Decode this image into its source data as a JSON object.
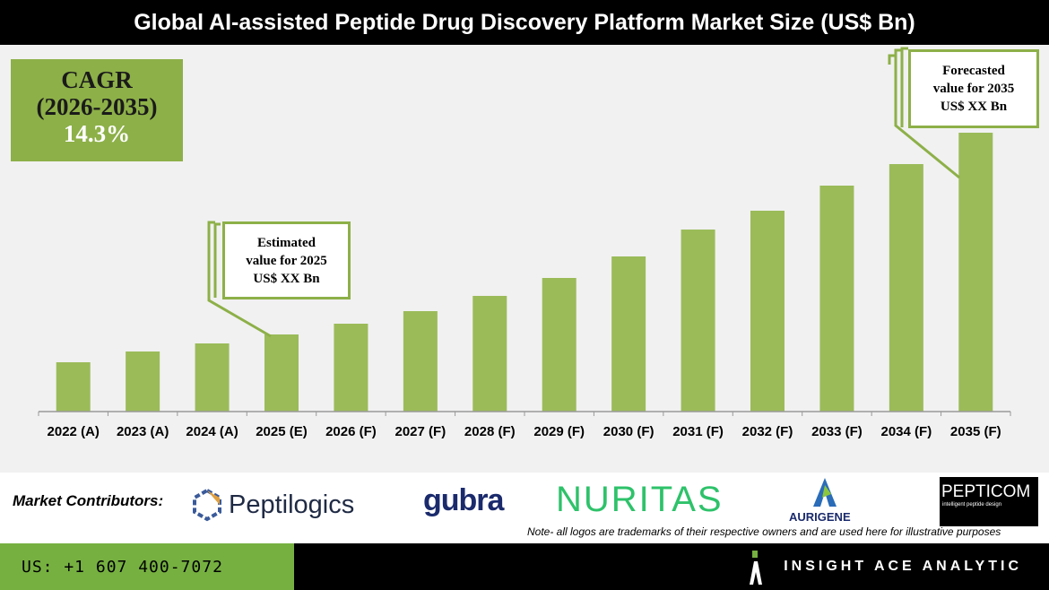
{
  "title": "Global AI-assisted Peptide Drug Discovery Platform Market Size (US$ Bn)",
  "cagr": {
    "label": "CAGR",
    "period": "(2026-2035)",
    "value": "14.3%"
  },
  "callouts": {
    "estimated": [
      "Estimated",
      "value for 2025",
      "US$ XX Bn"
    ],
    "forecast": [
      "Forecasted",
      "value for 2035",
      "US$ XX Bn"
    ]
  },
  "chart_data": {
    "type": "bar",
    "title": "Global AI-assisted Peptide Drug Discovery Platform Market Size (US$ Bn)",
    "categories": [
      "2022 (A)",
      "2023 (A)",
      "2024 (A)",
      "2025 (E)",
      "2026 (F)",
      "2027 (F)",
      "2028 (F)",
      "2029 (F)",
      "2030 (F)",
      "2031 (F)",
      "2032 (F)",
      "2033 (F)",
      "2034 (F)",
      "2035 (F)"
    ],
    "values": [
      55,
      67,
      76,
      86,
      98,
      112,
      129,
      149,
      173,
      203,
      224,
      252,
      276,
      311
    ],
    "note": "relative values; no y-axis shown",
    "color": "#9bbb59",
    "grid": false,
    "legend": "none"
  },
  "contributors": {
    "label": "Market Contributors:",
    "logos": [
      "Peptilogics",
      "gubra",
      "NURITAS",
      "AURIGENE",
      "PEPTICOM"
    ],
    "pepticom_tag": "intelligent peptide design",
    "note": "Note- all logos are trademarks of their respective owners and are used here for illustrative purposes"
  },
  "footer": {
    "phone": "US: +1 607 400-7072",
    "brand": "INSIGHT ACE ANALYTIC"
  }
}
